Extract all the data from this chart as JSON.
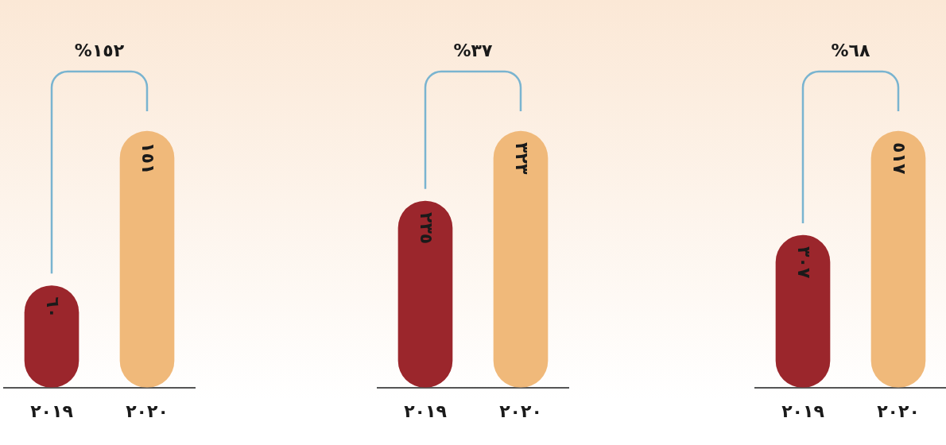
{
  "chart_data": [
    {
      "type": "bar",
      "categories": [
        "٢٠١٩",
        "٢٠٢٠"
      ],
      "values": [
        60,
        151
      ],
      "value_labels": [
        "٦٠",
        "١٥١"
      ],
      "colors": [
        "#9b262c",
        "#f0b97a"
      ],
      "annotations": [
        "%١٥٢"
      ]
    },
    {
      "type": "bar",
      "categories": [
        "٢٠١٩",
        "٢٠٢٠"
      ],
      "values": [
        235,
        323
      ],
      "value_labels": [
        "٢٣٥",
        "٣٢٣"
      ],
      "colors": [
        "#9b262c",
        "#f0b97a"
      ],
      "annotations": [
        "%٣٧"
      ]
    },
    {
      "type": "bar",
      "categories": [
        "٢٠١٩",
        "٢٠٢٠"
      ],
      "values": [
        307,
        517
      ],
      "value_labels": [
        "٣٠٧",
        "٥١٧"
      ],
      "colors": [
        "#9b262c",
        "#f0b97a"
      ],
      "annotations": [
        "%٦٨"
      ]
    }
  ]
}
